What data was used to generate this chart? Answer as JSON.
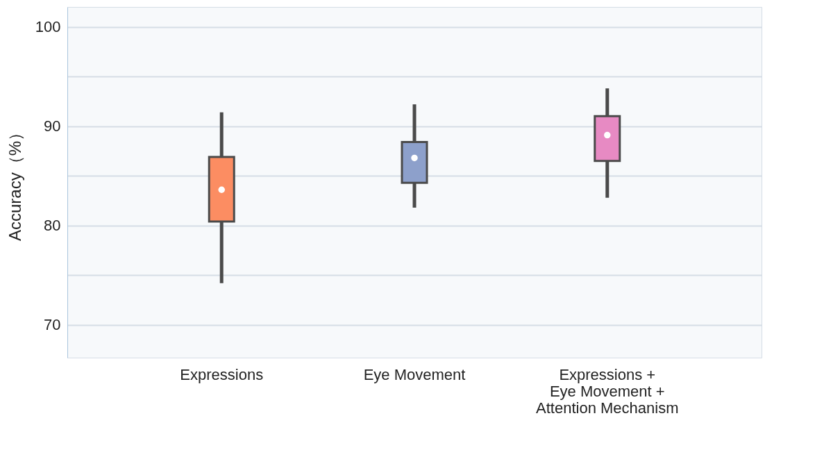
{
  "chart_data": {
    "type": "box",
    "ylabel": "Accuracy（%）",
    "categories": [
      "Expressions",
      "Eye Movement",
      "Expressions + Eye Movement + Attention Mechanism"
    ],
    "colors": [
      "#fc8d62",
      "#8da0cb",
      "#e78ac3"
    ],
    "boxes": [
      {
        "low": 74.2,
        "q1": 80.4,
        "median": 83.6,
        "q3": 86.9,
        "high": 91.4
      },
      {
        "low": 81.8,
        "q1": 84.3,
        "median": 86.8,
        "q3": 88.4,
        "high": 92.2
      },
      {
        "low": 82.8,
        "q1": 86.5,
        "median": 89.1,
        "q3": 91,
        "high": 93.8
      }
    ],
    "ylim": [
      66.7,
      102
    ],
    "yticks": [
      70,
      {
        "value": 75,
        "label": null
      },
      80,
      {
        "value": 85,
        "label": null
      },
      90,
      {
        "value": 95,
        "label": null
      },
      100
    ],
    "grid": "y"
  }
}
